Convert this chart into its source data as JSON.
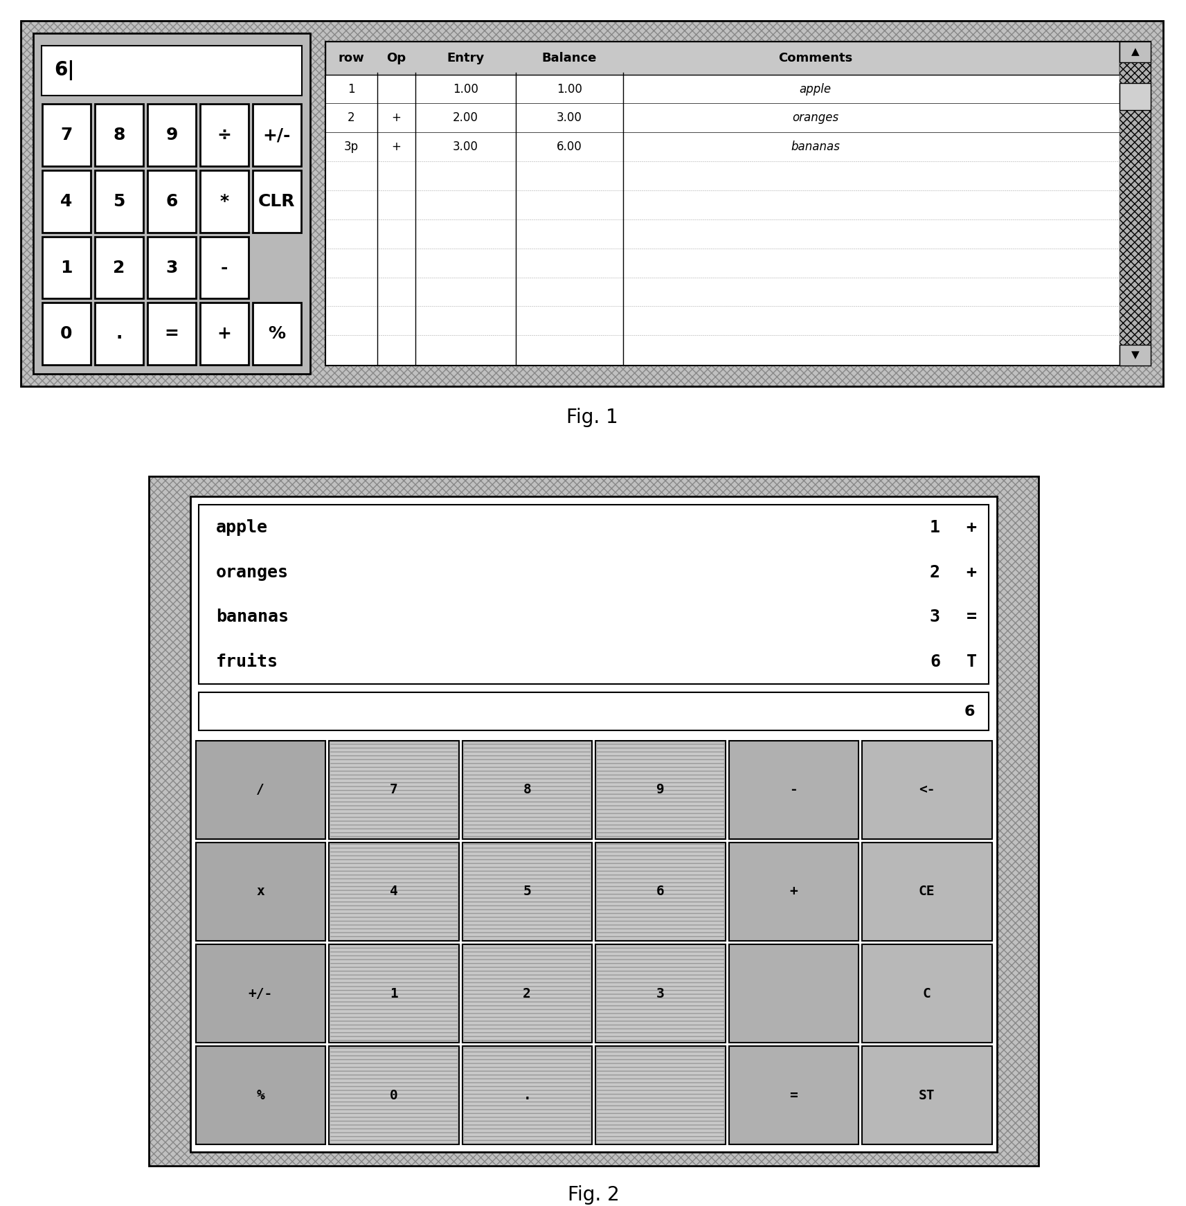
{
  "fig1_label": "Fig. 1",
  "fig2_label": "Fig. 2",
  "fig1_display": "6|",
  "fig1_table_headers": [
    "row",
    "Op",
    "Entry",
    "Balance",
    "Comments"
  ],
  "fig1_table_rows": [
    [
      "1",
      "",
      "1.00",
      "1.00",
      "apple"
    ],
    [
      "2",
      "+",
      "2.00",
      "3.00",
      "oranges"
    ],
    [
      "3p",
      "+",
      "3.00",
      "6.00",
      "bananas"
    ]
  ],
  "fig1_calc_buttons": [
    [
      "7",
      "8",
      "9",
      "÷",
      "+/-"
    ],
    [
      "4",
      "5",
      "6",
      "*",
      "CLR"
    ],
    [
      "1",
      "2",
      "3",
      "-",
      ""
    ],
    [
      "0",
      ".",
      "=",
      "+",
      "%"
    ]
  ],
  "fig2_list_items": [
    [
      "apple",
      "1",
      "+"
    ],
    [
      "oranges",
      "2",
      "+"
    ],
    [
      "bananas",
      "3",
      "="
    ],
    [
      "fruits",
      "6",
      "T"
    ]
  ],
  "fig2_display": "6",
  "fig2_calc_buttons_row1": [
    "/",
    "7",
    "8",
    "9",
    "-",
    "<-"
  ],
  "fig2_calc_buttons_row2": [
    "x",
    "4",
    "5",
    "6",
    "+",
    "CE"
  ],
  "fig2_calc_buttons_row3": [
    "+/-",
    "1",
    "2",
    "3",
    "",
    "C"
  ],
  "fig2_calc_buttons_row4": [
    "%",
    "0",
    ".",
    "",
    "=",
    "ST"
  ],
  "fig2_col4_row3_label": "",
  "fig2_col4_row4_label": "="
}
